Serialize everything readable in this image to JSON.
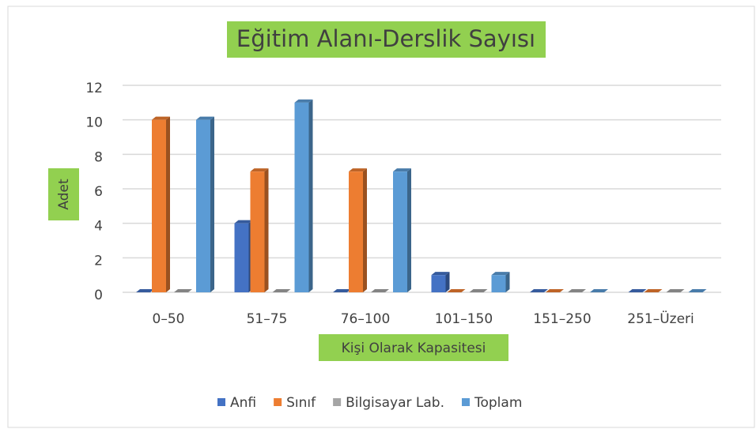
{
  "chart_data": {
    "type": "bar",
    "title": "Eğitim Alanı-Derslik Sayısı",
    "x_label": "Kişi Olarak Kapasitesi",
    "y_label": "Adet",
    "categories": [
      "0–50",
      "51–75",
      "76–100",
      "101–150",
      "151–250",
      "251–Üzeri"
    ],
    "series": [
      {
        "name": "Anfi",
        "color": "#4472c4",
        "values": [
          0,
          4,
          0,
          1,
          0,
          0
        ]
      },
      {
        "name": "Sınıf",
        "color": "#ed7d31",
        "values": [
          10,
          7,
          7,
          0,
          0,
          0
        ]
      },
      {
        "name": "Bilgisayar Lab.",
        "color": "#a5a5a5",
        "values": [
          0,
          0,
          0,
          0,
          0,
          0
        ]
      },
      {
        "name": "Toplam",
        "color": "#5b9bd5",
        "values": [
          10,
          11,
          7,
          1,
          0,
          0
        ]
      }
    ],
    "ylim": [
      0,
      12
    ],
    "yticks": [
      0,
      2,
      4,
      6,
      8,
      10,
      12
    ],
    "grid": true,
    "legend": "bottom"
  }
}
